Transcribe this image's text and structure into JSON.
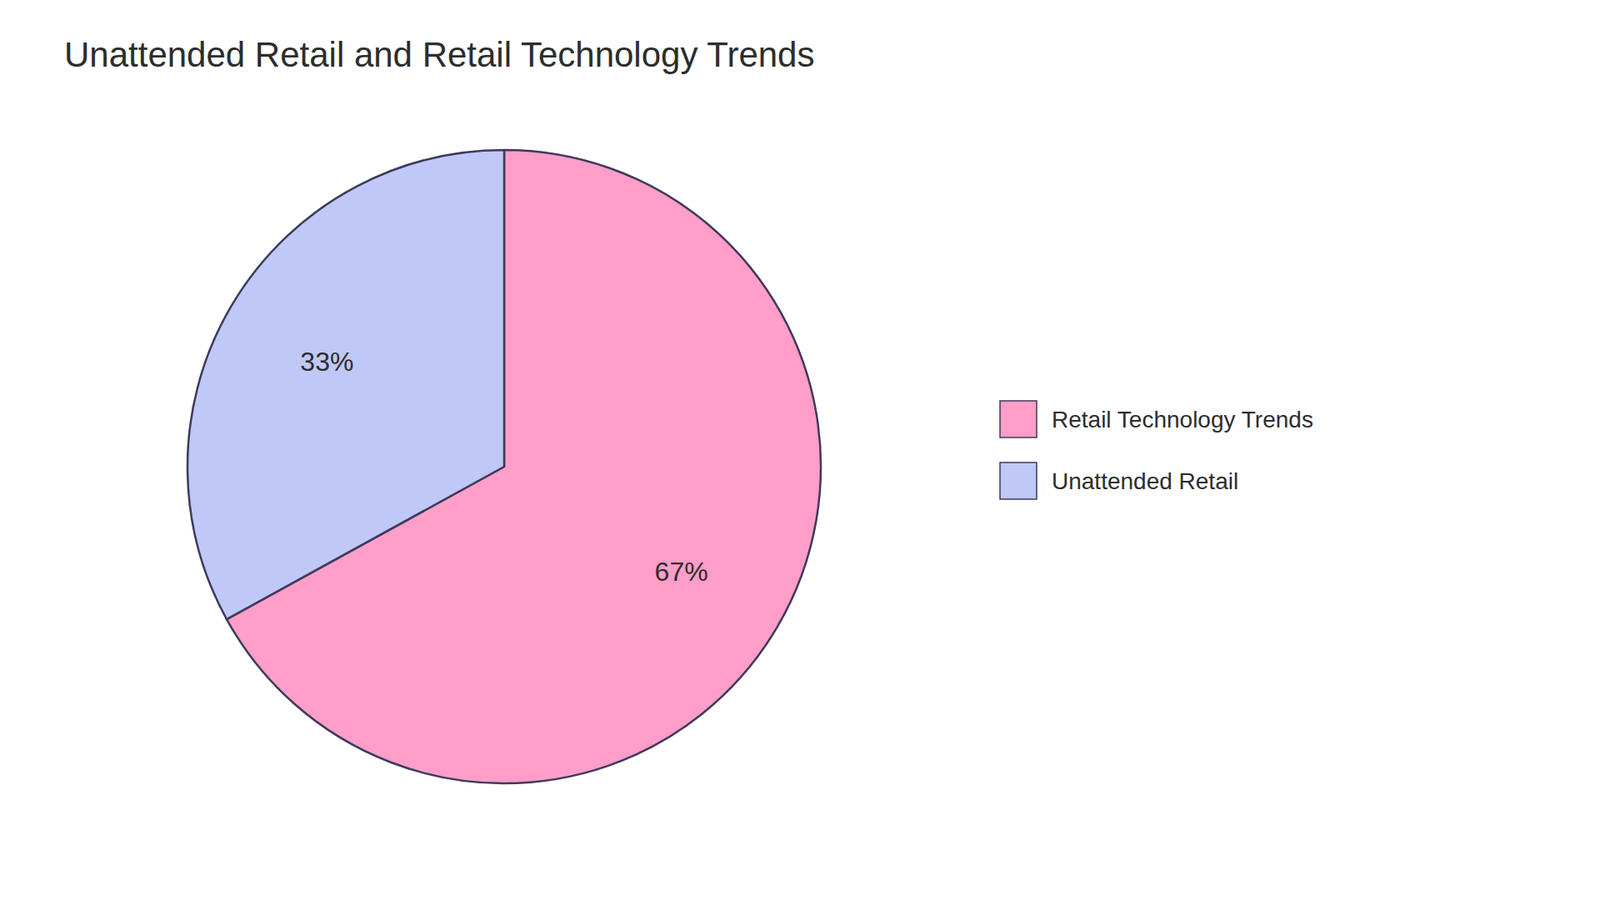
{
  "chart_data": {
    "type": "pie",
    "title": "Unattended Retail and Retail Technology Trends",
    "categories": [
      "Retail Technology Trends",
      "Unattended Retail"
    ],
    "values": [
      67,
      33
    ],
    "value_labels": [
      "67%",
      "33%"
    ],
    "colors": [
      "#FF9EC8",
      "#C0C8F8"
    ],
    "data_labels": true,
    "legend": "right"
  }
}
